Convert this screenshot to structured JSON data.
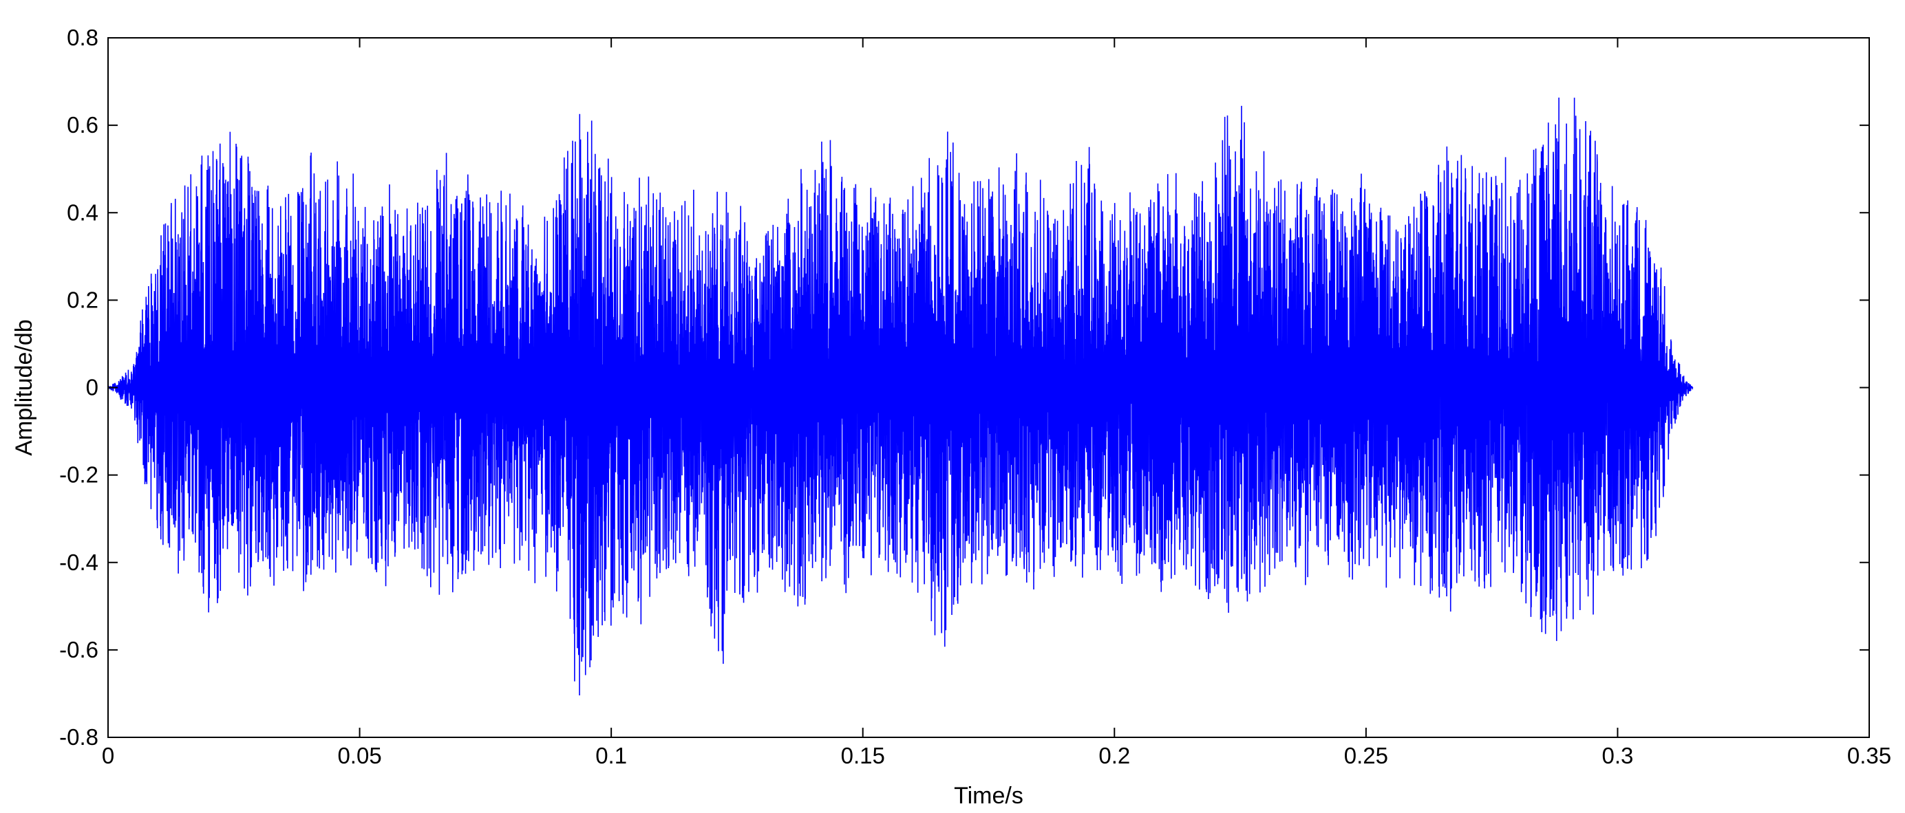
{
  "chart_data": {
    "type": "line",
    "title": "",
    "xlabel": "Time/s",
    "ylabel": "Amplitude/db",
    "xlim": [
      0,
      0.35
    ],
    "ylim": [
      -0.8,
      0.8
    ],
    "x_ticks": [
      0,
      0.05,
      0.1,
      0.15,
      0.2,
      0.25,
      0.3,
      0.35
    ],
    "x_tick_labels": [
      "0",
      "0.05",
      "0.1",
      "0.15",
      "0.2",
      "0.25",
      "0.3",
      "0.35"
    ],
    "y_ticks": [
      -0.8,
      -0.6,
      -0.4,
      -0.2,
      0,
      0.2,
      0.4,
      0.6,
      0.8
    ],
    "y_tick_labels": [
      "-0.8",
      "-0.6",
      "-0.4",
      "-0.2",
      "0",
      "0.2",
      "0.4",
      "0.6",
      "0.8"
    ],
    "grid": false,
    "legend": "none",
    "series": [
      {
        "color": "#0000ff",
        "x_start": 0,
        "x_end": 0.315,
        "envelope": {
          "t": [
            0,
            0.002,
            0.005,
            0.008,
            0.01,
            0.013,
            0.016,
            0.02,
            0.022,
            0.025,
            0.028,
            0.03,
            0.034,
            0.038,
            0.041,
            0.045,
            0.049,
            0.052,
            0.056,
            0.06,
            0.063,
            0.067,
            0.071,
            0.075,
            0.079,
            0.083,
            0.086,
            0.09,
            0.094,
            0.098,
            0.102,
            0.106,
            0.11,
            0.114,
            0.118,
            0.122,
            0.126,
            0.13,
            0.134,
            0.138,
            0.142,
            0.146,
            0.15,
            0.154,
            0.158,
            0.162,
            0.166,
            0.17,
            0.174,
            0.178,
            0.182,
            0.186,
            0.19,
            0.194,
            0.198,
            0.202,
            0.206,
            0.21,
            0.214,
            0.218,
            0.222,
            0.226,
            0.23,
            0.234,
            0.238,
            0.242,
            0.246,
            0.25,
            0.254,
            0.258,
            0.262,
            0.266,
            0.27,
            0.274,
            0.278,
            0.282,
            0.286,
            0.29,
            0.294,
            0.298,
            0.302,
            0.306,
            0.309,
            0.311,
            0.313,
            0.315
          ],
          "upper": [
            0.0,
            0.02,
            0.05,
            0.25,
            0.38,
            0.45,
            0.48,
            0.55,
            0.6,
            0.58,
            0.54,
            0.5,
            0.43,
            0.5,
            0.55,
            0.54,
            0.46,
            0.42,
            0.46,
            0.4,
            0.44,
            0.55,
            0.5,
            0.44,
            0.46,
            0.4,
            0.35,
            0.48,
            0.65,
            0.55,
            0.45,
            0.49,
            0.48,
            0.44,
            0.44,
            0.47,
            0.38,
            0.36,
            0.46,
            0.5,
            0.56,
            0.52,
            0.45,
            0.44,
            0.42,
            0.46,
            0.64,
            0.55,
            0.46,
            0.52,
            0.56,
            0.44,
            0.44,
            0.58,
            0.5,
            0.44,
            0.45,
            0.52,
            0.46,
            0.48,
            0.62,
            0.66,
            0.52,
            0.46,
            0.49,
            0.46,
            0.44,
            0.5,
            0.42,
            0.4,
            0.48,
            0.56,
            0.52,
            0.5,
            0.52,
            0.56,
            0.6,
            0.68,
            0.66,
            0.54,
            0.44,
            0.4,
            0.26,
            0.1,
            0.03,
            0.0
          ],
          "lower": [
            0.0,
            -0.02,
            -0.06,
            -0.3,
            -0.38,
            -0.42,
            -0.46,
            -0.55,
            -0.58,
            -0.52,
            -0.48,
            -0.42,
            -0.46,
            -0.5,
            -0.44,
            -0.4,
            -0.4,
            -0.42,
            -0.44,
            -0.38,
            -0.44,
            -0.46,
            -0.44,
            -0.42,
            -0.44,
            -0.4,
            -0.48,
            -0.46,
            -0.72,
            -0.6,
            -0.5,
            -0.55,
            -0.44,
            -0.42,
            -0.48,
            -0.64,
            -0.5,
            -0.46,
            -0.45,
            -0.52,
            -0.42,
            -0.46,
            -0.5,
            -0.42,
            -0.42,
            -0.46,
            -0.62,
            -0.5,
            -0.44,
            -0.42,
            -0.46,
            -0.42,
            -0.42,
            -0.44,
            -0.44,
            -0.44,
            -0.42,
            -0.46,
            -0.42,
            -0.48,
            -0.5,
            -0.5,
            -0.46,
            -0.44,
            -0.44,
            -0.46,
            -0.42,
            -0.44,
            -0.44,
            -0.46,
            -0.44,
            -0.5,
            -0.46,
            -0.5,
            -0.46,
            -0.5,
            -0.65,
            -0.58,
            -0.52,
            -0.46,
            -0.44,
            -0.4,
            -0.28,
            -0.1,
            -0.03,
            0.0
          ]
        }
      }
    ]
  }
}
